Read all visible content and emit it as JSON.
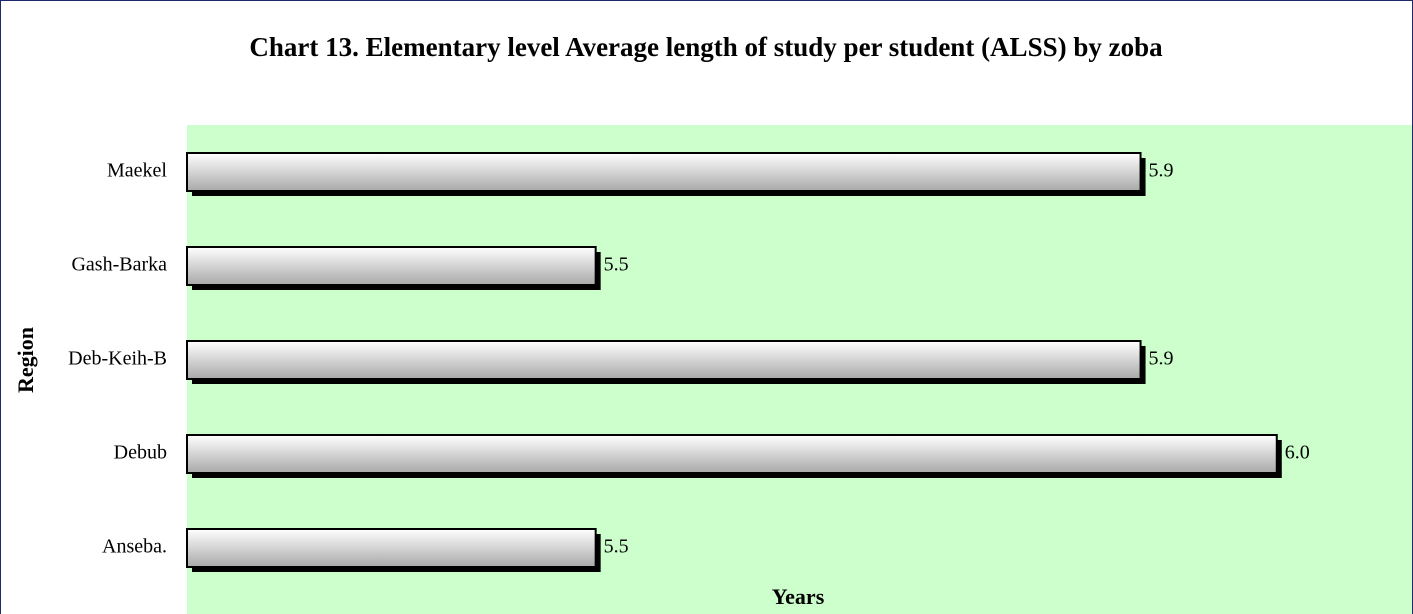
{
  "chart_data": {
    "type": "hbar",
    "title": "Chart 13. Elementary level Average length of study per student (ALSS) by zoba",
    "xlabel": "Years",
    "ylabel": "Region",
    "categories": [
      "Maekel",
      "Gash-Barka",
      "Deb-Keih-B",
      "Debub",
      "Anseba."
    ],
    "values": [
      5.9,
      5.5,
      5.9,
      6.0,
      5.5
    ],
    "value_labels": [
      "5.9",
      "5.5",
      "5.9",
      "6.0",
      "5.5"
    ],
    "xlim": [
      5.2,
      6.1
    ],
    "plot_background": "#ccffcc",
    "color": "#d8d8d8"
  }
}
